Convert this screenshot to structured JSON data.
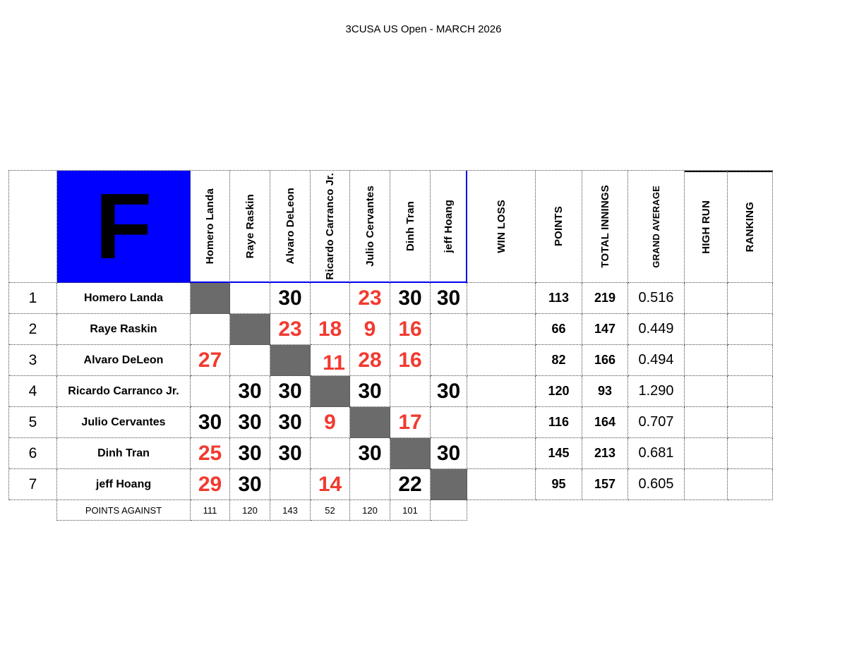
{
  "title": "3CUSA US Open - MARCH 2026",
  "group_letter": "F",
  "colors": {
    "group_blue": "#0000fe",
    "selection_blue": "#0000f0",
    "diagonal_gray": "#6b6b6b",
    "loss_red": "#f23a30"
  },
  "sheet": {
    "player_columns": [
      "Homero Landa",
      "Raye Raskin",
      "Alvaro DeLeon",
      "Ricardo Carranco Jr.",
      "Julio Cervantes",
      "Dinh Tran",
      "jeff Hoang"
    ],
    "stat_columns": [
      "WIN LOSS",
      "POINTS",
      "TOTAL INNINGS",
      "GRAND AVERAGE",
      "HIGH RUN",
      "RANKING"
    ],
    "rows": [
      {
        "num": "1",
        "name": "Homero Landa",
        "scores": [
          {
            "v": ""
          },
          {
            "v": ""
          },
          {
            "v": "30",
            "red": false
          },
          {
            "v": ""
          },
          {
            "v": "23",
            "red": true
          },
          {
            "v": "30",
            "red": false
          },
          {
            "v": "30",
            "red": false
          }
        ],
        "win_loss": "",
        "points": "113",
        "total_innings": "219",
        "grand_average": "0.516",
        "high_run": "",
        "ranking": ""
      },
      {
        "num": "2",
        "name": "Raye Raskin",
        "scores": [
          {
            "v": ""
          },
          {
            "v": ""
          },
          {
            "v": "23",
            "red": true
          },
          {
            "v": "18",
            "red": true
          },
          {
            "v": "9",
            "red": true
          },
          {
            "v": "16",
            "red": true
          },
          {
            "v": ""
          }
        ],
        "win_loss": "",
        "points": "66",
        "total_innings": "147",
        "grand_average": "0.449",
        "high_run": "",
        "ranking": ""
      },
      {
        "num": "3",
        "name": "Alvaro DeLeon",
        "scores": [
          {
            "v": "27",
            "red": true
          },
          {
            "v": ""
          },
          {
            "v": ""
          },
          {
            "v": "11",
            "red": true
          },
          {
            "v": "28",
            "red": true
          },
          {
            "v": "16",
            "red": true
          },
          {
            "v": ""
          }
        ],
        "win_loss": "",
        "points": "82",
        "total_innings": "166",
        "grand_average": "0.494",
        "high_run": "",
        "ranking": ""
      },
      {
        "num": "4",
        "name": "Ricardo Carranco Jr.",
        "scores": [
          {
            "v": ""
          },
          {
            "v": "30",
            "red": false
          },
          {
            "v": "30",
            "red": false
          },
          {
            "v": ""
          },
          {
            "v": "30",
            "red": false
          },
          {
            "v": ""
          },
          {
            "v": "30",
            "red": false
          }
        ],
        "win_loss": "",
        "points": "120",
        "total_innings": "93",
        "grand_average": "1.290",
        "high_run": "",
        "ranking": ""
      },
      {
        "num": "5",
        "name": "Julio Cervantes",
        "scores": [
          {
            "v": "30",
            "red": false
          },
          {
            "v": "30",
            "red": false
          },
          {
            "v": "30",
            "red": false
          },
          {
            "v": "9",
            "red": true
          },
          {
            "v": ""
          },
          {
            "v": "17",
            "red": true
          },
          {
            "v": ""
          }
        ],
        "win_loss": "",
        "points": "116",
        "total_innings": "164",
        "grand_average": "0.707",
        "high_run": "",
        "ranking": ""
      },
      {
        "num": "6",
        "name": "Dinh Tran",
        "scores": [
          {
            "v": "25",
            "red": true
          },
          {
            "v": "30",
            "red": false
          },
          {
            "v": "30",
            "red": false
          },
          {
            "v": ""
          },
          {
            "v": "30",
            "red": false
          },
          {
            "v": ""
          },
          {
            "v": "30",
            "red": false
          }
        ],
        "win_loss": "",
        "points": "145",
        "total_innings": "213",
        "grand_average": "0.681",
        "high_run": "",
        "ranking": ""
      },
      {
        "num": "7",
        "name": "jeff Hoang",
        "scores": [
          {
            "v": "29",
            "red": true
          },
          {
            "v": "30",
            "red": false
          },
          {
            "v": ""
          },
          {
            "v": "14",
            "red": true
          },
          {
            "v": ""
          },
          {
            "v": "22",
            "red": false
          },
          {
            "v": ""
          }
        ],
        "win_loss": "",
        "points": "95",
        "total_innings": "157",
        "grand_average": "0.605",
        "high_run": "",
        "ranking": ""
      }
    ],
    "points_against": {
      "label": "POINTS AGAINST",
      "values": [
        "111",
        "120",
        "143",
        "52",
        "120",
        "101",
        ""
      ]
    }
  }
}
